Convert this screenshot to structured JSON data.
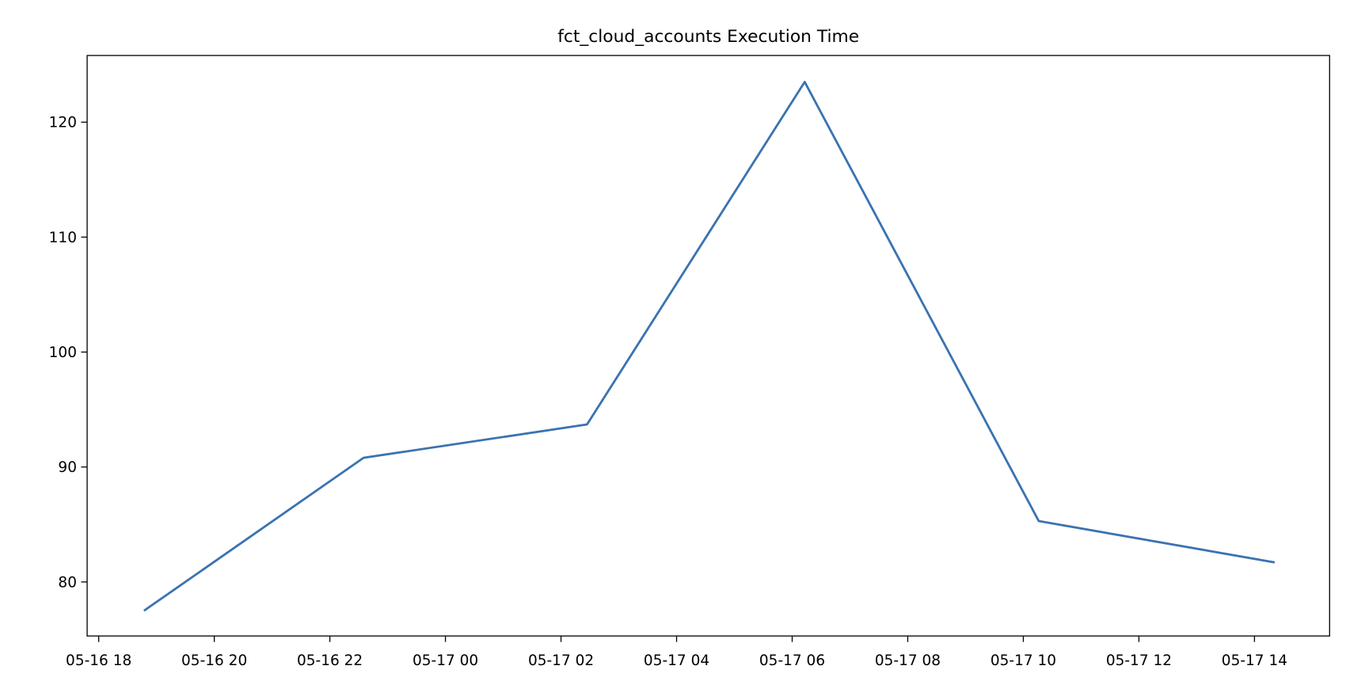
{
  "chart_data": {
    "type": "line",
    "title": "fct_cloud_accounts Execution Time",
    "xlabel": "",
    "ylabel": "",
    "x_ticks": [
      "05-16 18",
      "05-16 20",
      "05-16 22",
      "05-17 00",
      "05-17 02",
      "05-17 04",
      "05-17 06",
      "05-17 08",
      "05-17 10",
      "05-17 12",
      "05-17 14"
    ],
    "y_ticks": [
      80,
      90,
      100,
      110,
      120
    ],
    "xlim": [
      "05-16 17:48",
      "05-17 15:18"
    ],
    "ylim": [
      75.3,
      125.8
    ],
    "grid": false,
    "series": [
      {
        "color": "#3a73b0",
        "x": [
          "05-16 18:47",
          "05-16 22:35",
          "05-17 02:27",
          "05-17 06:13",
          "05-17 10:16",
          "05-17 14:21"
        ],
        "y": [
          77.5,
          90.8,
          93.7,
          123.5,
          85.3,
          81.7
        ]
      }
    ]
  }
}
